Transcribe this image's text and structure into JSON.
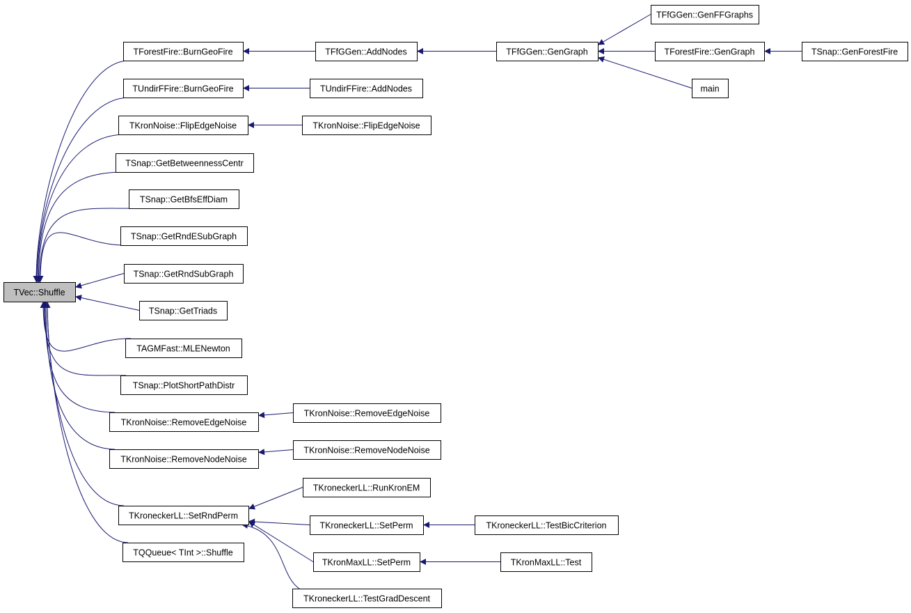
{
  "colors": {
    "edge": "#191970",
    "root_fill": "#bfbfbf",
    "node_fill": "#ffffff"
  },
  "nodes": {
    "shuffle": "TVec::Shuffle",
    "bgf": "TForestFire::BurnGeoFire",
    "ubgf": "TUndirFFire::BurnGeoFire",
    "kfen": "TKronNoise::FlipEdgeNoise",
    "gbc": "TSnap::GetBetweennessCentr",
    "gbed": "TSnap::GetBfsEffDiam",
    "gres": "TSnap::GetRndESubGraph",
    "grsg": "TSnap::GetRndSubGraph",
    "gt": "TSnap::GetTriads",
    "mle": "TAGMFast::MLENewton",
    "pspd": "TSnap::PlotShortPathDistr",
    "rmen": "TKronNoise::RemoveEdgeNoise",
    "rmnn": "TKronNoise::RemoveNodeNoise",
    "srp": "TKroneckerLL::SetRndPerm",
    "qq": "TQQueue< TInt >::Shuffle",
    "fgan": "TFfGGen::AddNodes",
    "uan": "TUndirFFire::AddNodes",
    "kfen2": "TKronNoise::FlipEdgeNoise",
    "rmen2": "TKronNoise::RemoveEdgeNoise",
    "rmnn2": "TKronNoise::RemoveNodeNoise",
    "rke": "TKroneckerLL::RunKronEM",
    "ksp": "TKroneckerLL::SetPerm",
    "kmsp": "TKronMaxLL::SetPerm",
    "tgd": "TKroneckerLL::TestGradDescent",
    "gg": "TFfGGen::GenGraph",
    "tbc": "TKroneckerLL::TestBicCriterion",
    "kmt": "TKronMaxLL::Test",
    "gffg": "TFfGGen::GenFFGraphs",
    "ffgg": "TForestFire::GenGraph",
    "main": "main",
    "gff": "TSnap::GenForestFire"
  },
  "edges": [
    [
      "bgf",
      "shuffle"
    ],
    [
      "ubgf",
      "shuffle"
    ],
    [
      "kfen",
      "shuffle"
    ],
    [
      "gbc",
      "shuffle"
    ],
    [
      "gbed",
      "shuffle"
    ],
    [
      "gres",
      "shuffle"
    ],
    [
      "grsg",
      "shuffle"
    ],
    [
      "gt",
      "shuffle"
    ],
    [
      "mle",
      "shuffle"
    ],
    [
      "pspd",
      "shuffle"
    ],
    [
      "rmen",
      "shuffle"
    ],
    [
      "rmnn",
      "shuffle"
    ],
    [
      "srp",
      "shuffle"
    ],
    [
      "qq",
      "shuffle"
    ],
    [
      "fgan",
      "bgf"
    ],
    [
      "uan",
      "ubgf"
    ],
    [
      "kfen2",
      "kfen"
    ],
    [
      "rmen2",
      "rmen"
    ],
    [
      "rmnn2",
      "rmnn"
    ],
    [
      "rke",
      "srp"
    ],
    [
      "ksp",
      "srp"
    ],
    [
      "kmsp",
      "srp"
    ],
    [
      "tgd",
      "srp"
    ],
    [
      "gg",
      "fgan"
    ],
    [
      "gffg",
      "gg"
    ],
    [
      "ffgg",
      "gg"
    ],
    [
      "main",
      "gg"
    ],
    [
      "gff",
      "ffgg"
    ],
    [
      "tbc",
      "ksp"
    ],
    [
      "kmt",
      "kmsp"
    ]
  ]
}
